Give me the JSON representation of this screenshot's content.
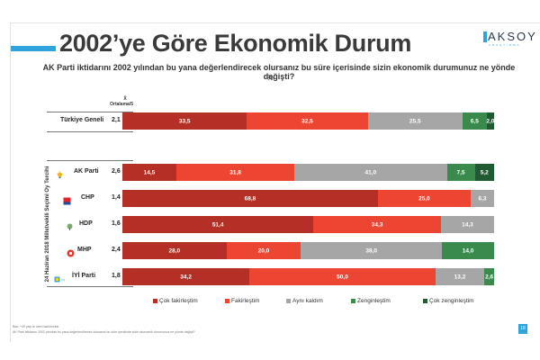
{
  "title": "2002’ye Göre Ekonomik Durum",
  "logo": {
    "name": "AKSOY",
    "sub": "ARAŞTIRMA"
  },
  "question": "AK Parti iktidarını 2002 yılından bu yana değerlendirecek olursanız bu süre içerisinde sizin ekonomik durumunuz ne yönde değişti?",
  "unit": "%",
  "avg_header": {
    "symbol": "X̄",
    "label": "Ortalama/5"
  },
  "vertical_label": "24 Haziran 2018 Milletvekili Seçimi Oy Tercihi",
  "colors": {
    "cok_fakir": "#b42f25",
    "fakir": "#ec4532",
    "ayni": "#a6a6a6",
    "zengin": "#3a8a4e",
    "cok_zengin": "#1f5a33",
    "accent": "#2ea3dc"
  },
  "chart_data": {
    "type": "bar",
    "orientation": "horizontal",
    "stacked": true,
    "title": "2002’ye Göre Ekonomik Durum",
    "categories": [
      "Türkiye Geneli",
      "AK Parti",
      "CHP",
      "HDP",
      "MHP",
      "İYİ Parti"
    ],
    "averages": [
      "2,1",
      "2,6",
      "1,4",
      "1,6",
      "2,4",
      "1,8"
    ],
    "series": [
      {
        "name": "Çok fakirleştim",
        "values": [
          33.5,
          14.5,
          68.8,
          51.4,
          28.0,
          34.2
        ],
        "labels": [
          "33,5",
          "14,5",
          "68,8",
          "51,4",
          "28,0",
          "34,2"
        ]
      },
      {
        "name": "Fakirleştim",
        "values": [
          32.5,
          31.8,
          25.0,
          34.3,
          20.0,
          50.0
        ],
        "labels": [
          "32,5",
          "31,8",
          "25,0",
          "34,3",
          "20,0",
          "50,0"
        ]
      },
      {
        "name": "Aynı kaldım",
        "values": [
          25.5,
          41.0,
          6.3,
          14.3,
          38.0,
          13.2
        ],
        "labels": [
          "25,5",
          "41,0",
          "6,3",
          "14,3",
          "38,0",
          "13,2"
        ]
      },
      {
        "name": "Zenginleştim",
        "values": [
          6.5,
          7.5,
          0,
          0,
          14.0,
          2.6
        ],
        "labels": [
          "6,5",
          "7,5",
          "",
          "",
          "14,0",
          "2,6"
        ]
      },
      {
        "name": "Çok zenginleştim",
        "values": [
          2.0,
          5.2,
          0,
          0,
          0,
          0
        ],
        "labels": [
          "2,0",
          "5,2",
          "",
          "",
          "",
          ""
        ]
      }
    ],
    "xlim": [
      0,
      100
    ],
    "legend_position": "bottom"
  },
  "footnotes": [
    "Baz: +40 yaş ve üzeri katılımcılar",
    "AK Parti iktidarını 2002 yılından bu yana değerlendirecek olursanız bu süre içerisinde sizin ekonomik durumunuz ne yönde değişti?"
  ],
  "page_number": "18"
}
